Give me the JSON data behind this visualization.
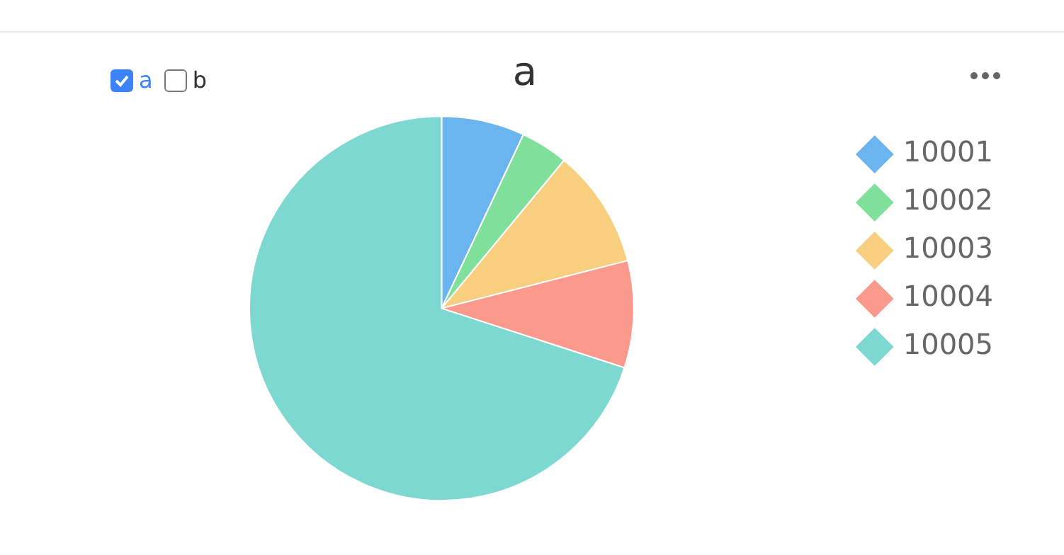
{
  "chart_data": {
    "type": "pie",
    "title": "a",
    "annotations": [
      "a",
      "b"
    ],
    "categories": [
      "10001",
      "10002",
      "10003",
      "10004",
      "10005"
    ],
    "values": [
      7,
      4,
      10,
      9,
      70
    ],
    "colors": [
      "#6ab4f0",
      "#7ee09a",
      "#f8cf7e",
      "#fb9a8c",
      "#7dd8d2"
    ],
    "legend": "right"
  }
}
